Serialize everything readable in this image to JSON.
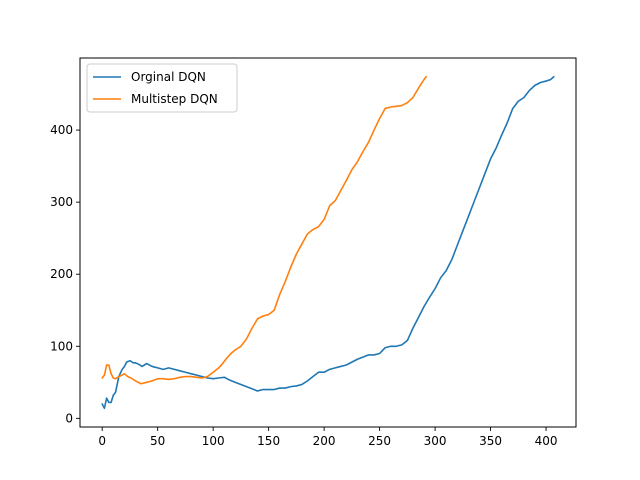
{
  "chart_data": {
    "type": "line",
    "title": "",
    "xlabel": "",
    "ylabel": "",
    "xlim": [
      -20,
      427
    ],
    "ylim": [
      -12,
      500
    ],
    "xticks": [
      0,
      50,
      100,
      150,
      200,
      250,
      300,
      350,
      400
    ],
    "yticks": [
      0,
      100,
      200,
      300,
      400
    ],
    "grid": false,
    "legend_position": "top-left",
    "series": [
      {
        "name": "Orginal DQN",
        "color": "#1f77b4",
        "x": [
          0,
          2,
          4,
          6,
          8,
          10,
          12,
          15,
          18,
          20,
          22,
          25,
          28,
          30,
          33,
          36,
          40,
          45,
          50,
          55,
          60,
          65,
          70,
          75,
          80,
          85,
          90,
          95,
          100,
          105,
          110,
          115,
          120,
          125,
          130,
          135,
          140,
          145,
          150,
          155,
          160,
          165,
          170,
          175,
          180,
          185,
          190,
          195,
          200,
          205,
          210,
          215,
          220,
          225,
          230,
          235,
          240,
          245,
          250,
          255,
          260,
          265,
          270,
          275,
          280,
          285,
          290,
          295,
          300,
          305,
          310,
          315,
          320,
          325,
          330,
          335,
          340,
          345,
          350,
          355,
          360,
          365,
          370,
          375,
          380,
          385,
          390,
          395,
          400,
          404,
          407
        ],
        "y": [
          20,
          14,
          28,
          22,
          22,
          32,
          36,
          58,
          68,
          72,
          78,
          80,
          77,
          77,
          75,
          72,
          76,
          72,
          70,
          68,
          70,
          68,
          66,
          64,
          62,
          60,
          58,
          56,
          55,
          56,
          57,
          53,
          50,
          47,
          44,
          41,
          38,
          40,
          40,
          40,
          42,
          42,
          44,
          45,
          47,
          52,
          58,
          64,
          64,
          68,
          70,
          72,
          74,
          78,
          82,
          85,
          88,
          88,
          90,
          98,
          100,
          100,
          102,
          108,
          125,
          140,
          155,
          168,
          180,
          195,
          205,
          220,
          240,
          260,
          280,
          300,
          320,
          340,
          360,
          375,
          393,
          410,
          430,
          440,
          445,
          455,
          462,
          466,
          468,
          470,
          474
        ]
      },
      {
        "name": "Multistep DQN",
        "color": "#ff7f0e",
        "x": [
          0,
          2,
          4,
          6,
          8,
          10,
          12,
          15,
          18,
          20,
          23,
          26,
          30,
          35,
          40,
          45,
          50,
          55,
          60,
          65,
          70,
          75,
          80,
          85,
          90,
          95,
          100,
          105,
          108,
          112,
          116,
          120,
          125,
          130,
          135,
          140,
          145,
          150,
          155,
          160,
          165,
          170,
          175,
          180,
          185,
          190,
          195,
          200,
          205,
          210,
          215,
          220,
          225,
          230,
          235,
          240,
          245,
          250,
          255,
          260,
          265,
          270,
          275,
          280,
          285,
          290,
          292
        ],
        "y": [
          56,
          60,
          74,
          74,
          62,
          56,
          55,
          58,
          60,
          62,
          58,
          56,
          52,
          48,
          50,
          52,
          55,
          55,
          54,
          55,
          57,
          58,
          58,
          57,
          56,
          58,
          64,
          70,
          75,
          83,
          90,
          95,
          100,
          110,
          125,
          138,
          142,
          144,
          150,
          172,
          190,
          210,
          228,
          242,
          256,
          262,
          266,
          276,
          295,
          302,
          316,
          330,
          345,
          356,
          370,
          383,
          400,
          416,
          430,
          432,
          433,
          434,
          438,
          445,
          458,
          470,
          474
        ]
      }
    ]
  }
}
